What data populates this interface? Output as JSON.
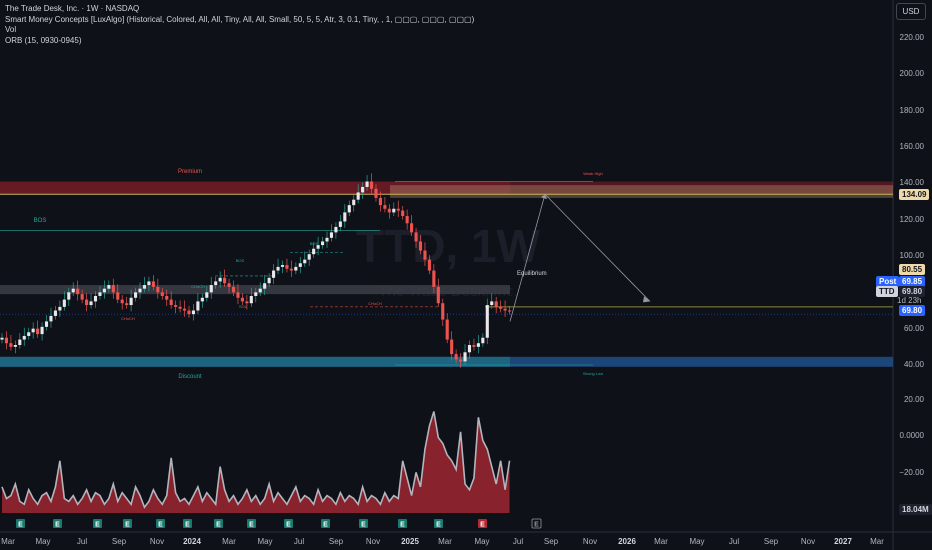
{
  "legend": {
    "title": "The Trade Desk, Inc. · 1W · NASDAQ",
    "indicator_1": "Smart Money Concepts [LuxAlgo] (Historical, Colored, All, All, Tiny, All, All, Small, 50, 5, 5, Atr, 3, 0.1, Tiny, , 1, ▢▢▢, ▢▢▢, ▢▢▢)",
    "indicator_2": "Vol",
    "indicator_3": "ORB (15, 0930-0945)"
  },
  "currency": "USD",
  "price_axis": [
    "220.00",
    "200.00",
    "180.00",
    "160.00",
    "140.00",
    "120.00",
    "100.00",
    "80.00",
    "60.00",
    "40.00"
  ],
  "volume_axis": [
    "20.00",
    "0.0000",
    "−20.00"
  ],
  "price_tags": {
    "level_134": "134.09",
    "level_80": "80.55",
    "post_label": "Post",
    "post_value": "69.85",
    "symbol": "TTD",
    "symbol_value": "69.80",
    "timer": "1d 23h",
    "last_value": "69.80",
    "volume_value": "18.04M"
  },
  "annotations": {
    "premium": "Premium",
    "equilibrium": "Equilibrium",
    "discount": "Discount",
    "weak_high": "Weak High",
    "strong_low": "Strong Low",
    "bos_left": "BOS",
    "bos_1": "BOS",
    "bos_2": "BOS",
    "choch_1": "CHoCH",
    "choch_2": "CHoCH",
    "choch_3": "CHoCH",
    "sol": "SOL",
    "watermark": "TTD, 1W",
    "watermark_sub": "The Trade Desk, Inc."
  },
  "time_axis": [
    {
      "label": "Mar",
      "bold": false
    },
    {
      "label": "May",
      "bold": false
    },
    {
      "label": "Jul",
      "bold": false
    },
    {
      "label": "Sep",
      "bold": false
    },
    {
      "label": "Nov",
      "bold": false
    },
    {
      "label": "2024",
      "bold": true
    },
    {
      "label": "Mar",
      "bold": false
    },
    {
      "label": "May",
      "bold": false
    },
    {
      "label": "Jul",
      "bold": false
    },
    {
      "label": "Sep",
      "bold": false
    },
    {
      "label": "Nov",
      "bold": false
    },
    {
      "label": "2025",
      "bold": true
    },
    {
      "label": "Mar",
      "bold": false
    },
    {
      "label": "May",
      "bold": false
    },
    {
      "label": "Jul",
      "bold": false
    },
    {
      "label": "Sep",
      "bold": false
    },
    {
      "label": "Nov",
      "bold": false
    },
    {
      "label": "2026",
      "bold": true
    },
    {
      "label": "Mar",
      "bold": false
    },
    {
      "label": "May",
      "bold": false
    },
    {
      "label": "Jul",
      "bold": false
    },
    {
      "label": "Sep",
      "bold": false
    },
    {
      "label": "Nov",
      "bold": false
    },
    {
      "label": "2027",
      "bold": true
    },
    {
      "label": "Mar",
      "bold": false
    }
  ],
  "earnings_marker": "E",
  "colors": {
    "up": "#26a69a",
    "down": "#ef5350",
    "premium_zone": "#8a1f2a",
    "discount_zone": "#1e4f8a",
    "equilibrium_zone": "#3a3c45",
    "target_zone": "#c4a07a",
    "volume_grey": "#b2b5be",
    "volume_red": "#b22833"
  },
  "chart_data": {
    "type": "candlestick",
    "symbol": "TTD",
    "interval": "1W",
    "y_range": [
      35,
      230
    ],
    "levels": {
      "premium_high": 141,
      "weak_high": 141,
      "target": 134.09,
      "equilibrium": 80.55,
      "strong_low": 40,
      "last": 69.8
    },
    "closes": [
      55,
      52,
      50,
      51,
      54,
      56,
      58,
      60,
      57,
      61,
      64,
      67,
      70,
      72,
      76,
      80,
      82,
      79,
      76,
      73,
      75,
      78,
      80,
      82,
      84,
      80,
      76,
      74,
      73,
      77,
      80,
      82,
      84,
      86,
      83,
      80,
      78,
      76,
      73,
      72,
      71,
      70,
      68,
      70,
      75,
      77,
      80,
      84,
      86,
      88,
      85,
      83,
      80,
      77,
      75,
      74,
      78,
      80,
      82,
      85,
      88,
      92,
      94,
      95,
      93,
      92,
      94,
      96,
      98,
      101,
      104,
      106,
      108,
      110,
      113,
      116,
      119,
      124,
      128,
      131,
      135,
      138,
      141,
      137,
      132,
      128,
      126,
      124,
      126,
      125,
      122,
      118,
      113,
      108,
      103,
      98,
      92,
      83,
      74,
      65,
      54,
      46,
      43,
      42,
      47,
      51,
      50,
      52,
      55,
      73,
      75,
      72,
      71,
      70,
      69.8
    ],
    "volume": [
      9,
      5,
      6,
      10,
      4,
      3,
      8,
      5,
      3,
      6,
      7,
      4,
      9,
      18,
      5,
      4,
      6,
      3,
      5,
      8,
      4,
      7,
      6,
      3,
      5,
      10,
      4,
      7,
      5,
      3,
      9,
      6,
      2,
      4,
      8,
      5,
      3,
      6,
      19,
      7,
      4,
      5,
      3,
      6,
      9,
      4,
      7,
      5,
      3,
      16,
      8,
      4,
      6,
      3,
      5,
      8,
      4,
      6,
      3,
      5,
      10,
      4,
      7,
      5,
      3,
      6,
      9,
      4,
      6,
      5,
      3,
      8,
      4,
      6,
      5,
      3,
      7,
      4,
      6,
      5,
      3,
      9,
      4,
      6,
      5,
      3,
      7,
      4,
      6,
      5,
      18,
      12,
      6,
      14,
      9,
      22,
      30,
      35,
      26,
      24,
      20,
      18,
      15,
      28,
      10,
      8,
      12,
      33,
      25,
      22,
      16,
      10,
      18,
      8,
      18.04
    ]
  }
}
